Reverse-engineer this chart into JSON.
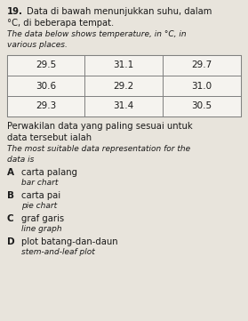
{
  "question_number": "19.",
  "title_malay_line1": "Data di bawah menunjukkan suhu, dalam",
  "title_malay_line2": "°C, di beberapa tempat.",
  "title_english_line1": "The data below shows temperature, in °C, in",
  "title_english_line2": "various places.",
  "table_data": [
    [
      "29.5",
      "31.1",
      "29.7"
    ],
    [
      "30.6",
      "29.2",
      "31.0"
    ],
    [
      "29.3",
      "31.4",
      "30.5"
    ]
  ],
  "question_malay_line1": "Perwakilan data yang paling sesuai untuk",
  "question_malay_line2": "data tersebut ialah",
  "question_english_line1": "The most suitable data representation for the",
  "question_english_line2": "data is",
  "options": [
    {
      "label": "A",
      "malay": "carta palang",
      "english": "bar chart"
    },
    {
      "label": "B",
      "malay": "carta pai",
      "english": "pie chart"
    },
    {
      "label": "C",
      "malay": "graf garis",
      "english": "line graph"
    },
    {
      "label": "D",
      "malay": "plot batang-dan-daun",
      "english": "stem-and-leaf plot"
    }
  ],
  "bg_color": "#e8e4dc",
  "text_color": "#1a1a1a",
  "table_border_color": "#777777",
  "table_bg": "#f5f3ef"
}
